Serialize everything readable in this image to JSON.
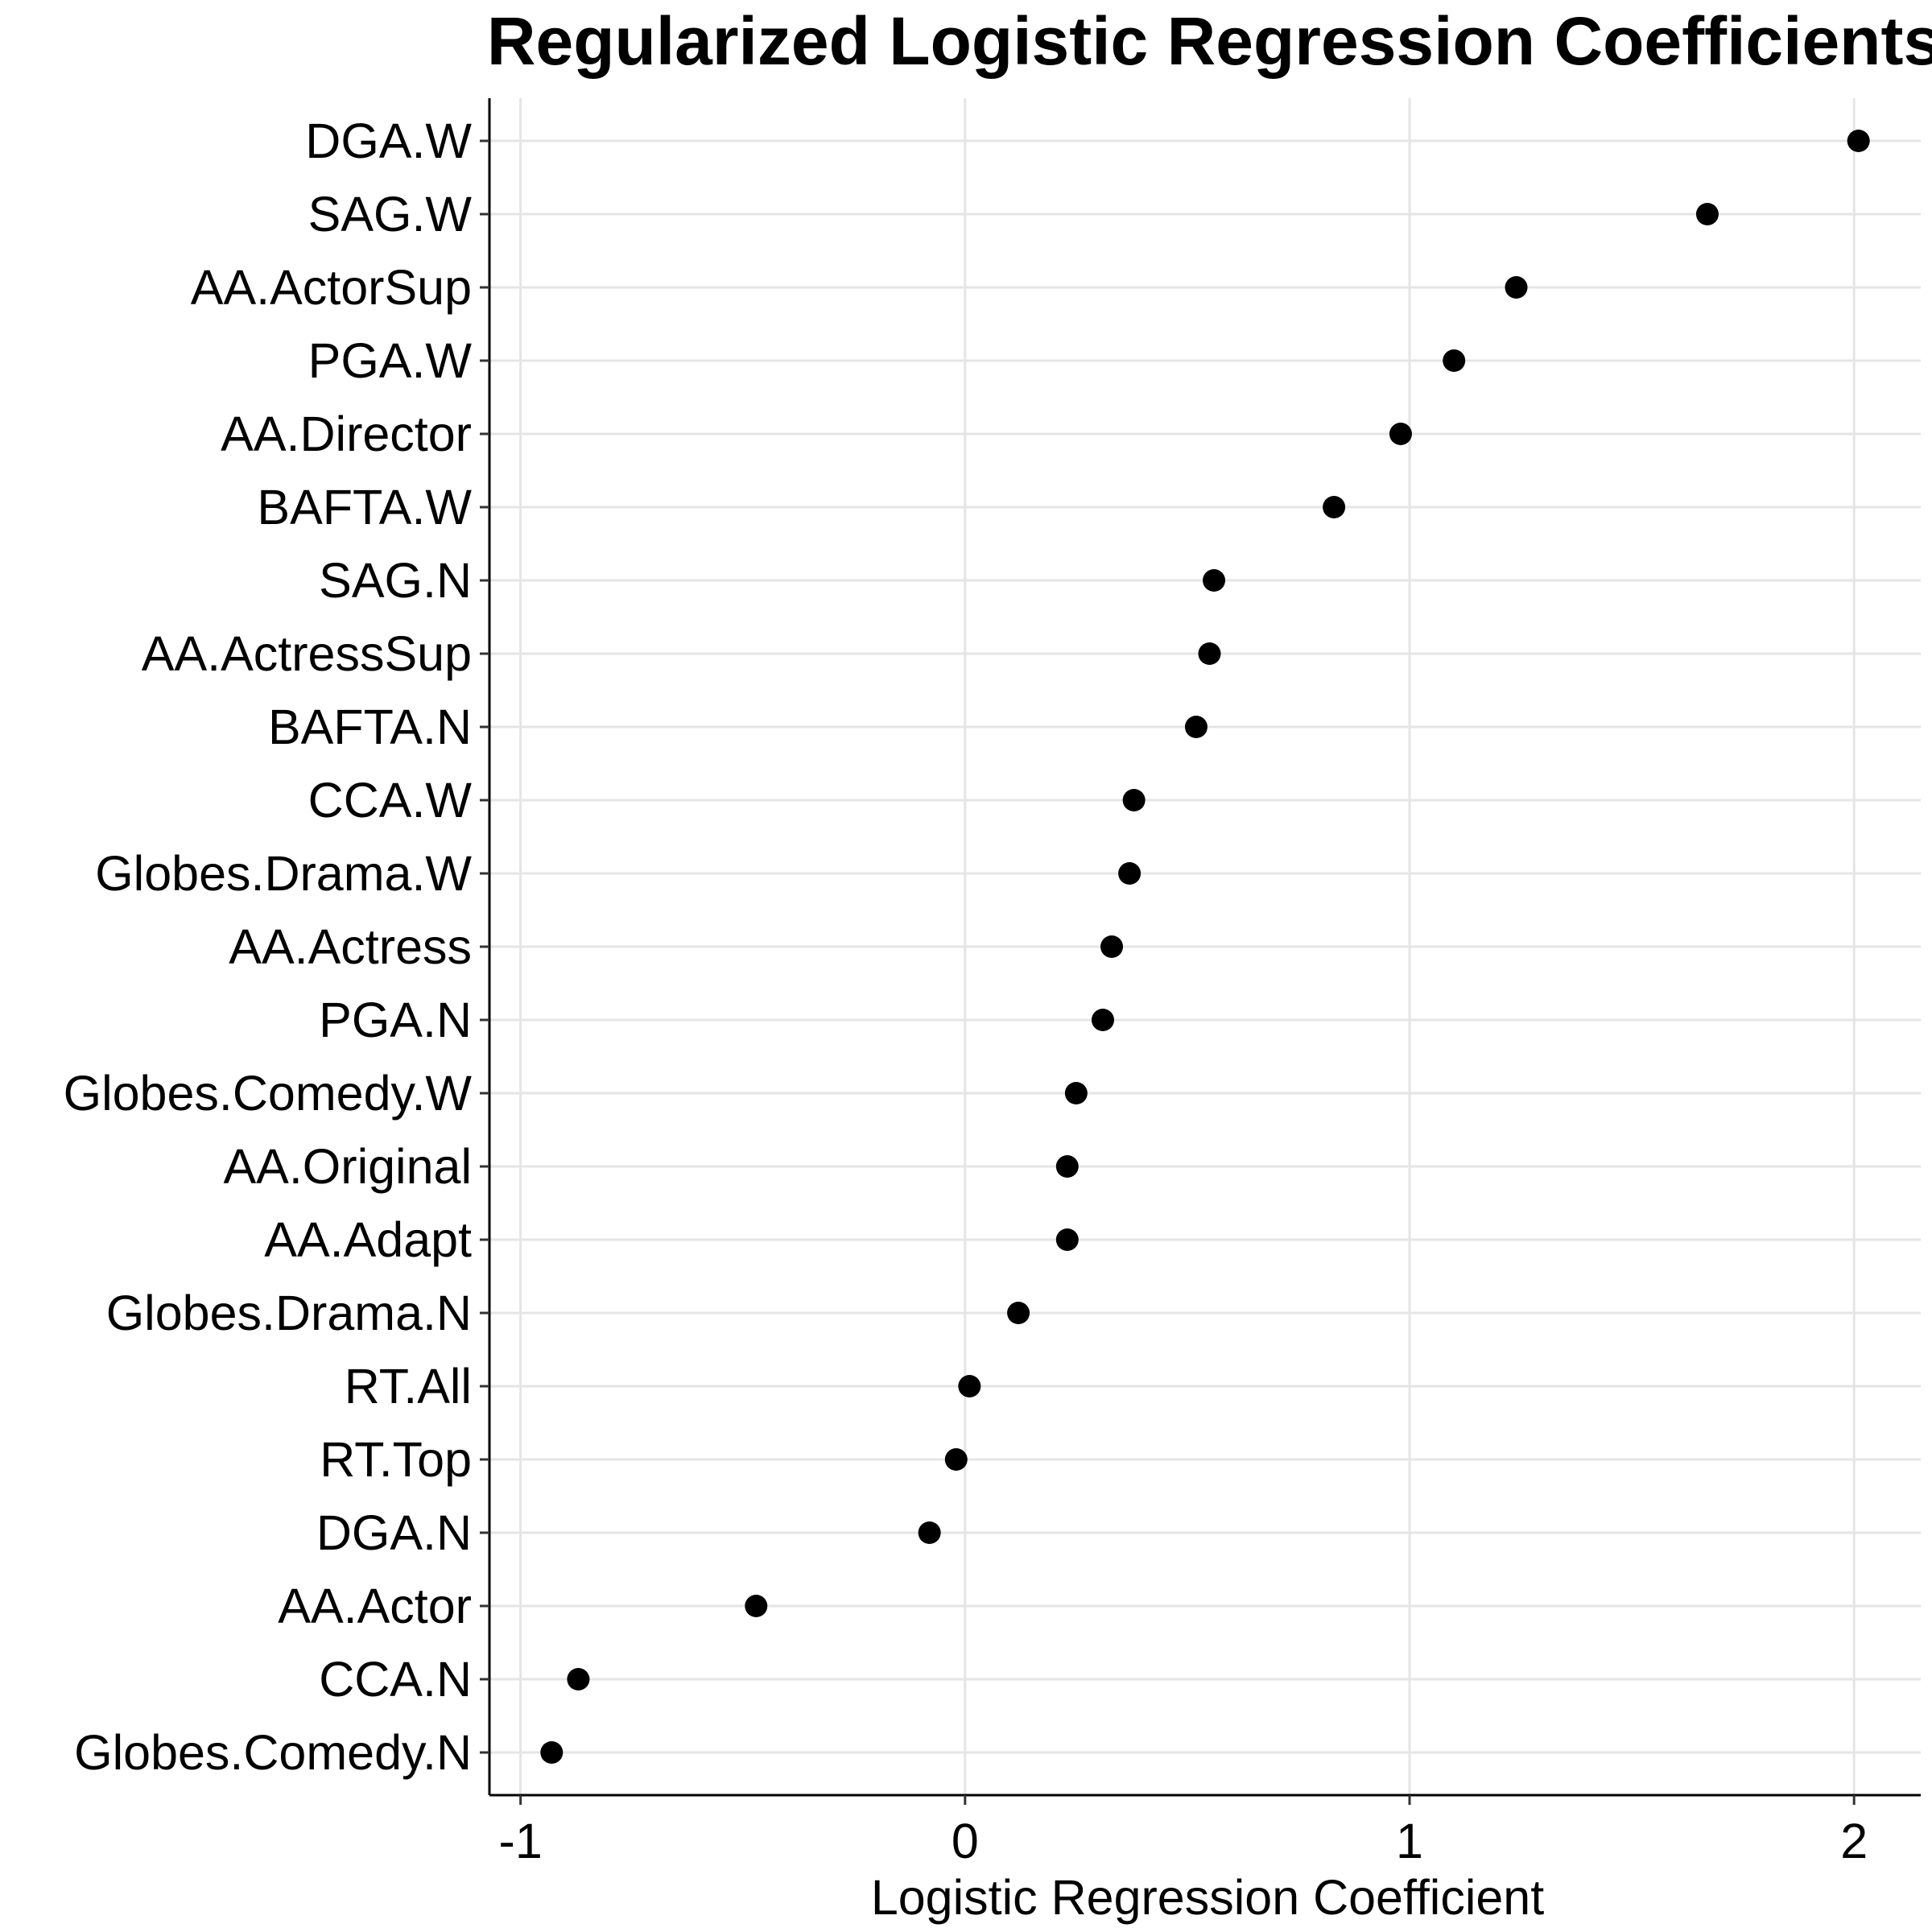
{
  "chart_data": {
    "type": "scatter",
    "title": "Regularized Logistic Regression Coefficients",
    "xlabel": "Logistic Regression Coefficient",
    "ylabel": "",
    "xlim": [
      -1.07,
      2.15
    ],
    "xticks": [
      -1,
      0,
      1,
      2
    ],
    "xtick_labels": [
      "-1",
      "0",
      "1",
      "2"
    ],
    "grid": true,
    "legend": "none",
    "point_color": "#000000",
    "grid_color": "#e5e5e5",
    "categories": [
      "DGA.W",
      "SAG.W",
      "AA.ActorSup",
      "PGA.W",
      "AA.Director",
      "BAFTA.W",
      "SAG.N",
      "AA.ActressSup",
      "BAFTA.N",
      "CCA.W",
      "Globes.Drama.W",
      "AA.Actress",
      "PGA.N",
      "Globes.Comedy.W",
      "AA.Original",
      "AA.Adapt",
      "Globes.Drama.N",
      "RT.All",
      "RT.Top",
      "DGA.N",
      "AA.Actor",
      "CCA.N",
      "Globes.Comedy.N"
    ],
    "values": [
      2.01,
      1.67,
      1.24,
      1.1,
      0.98,
      0.83,
      0.56,
      0.55,
      0.52,
      0.38,
      0.37,
      0.33,
      0.31,
      0.25,
      0.23,
      0.23,
      0.12,
      0.01,
      -0.02,
      -0.08,
      -0.47,
      -0.87,
      -0.93
    ]
  }
}
